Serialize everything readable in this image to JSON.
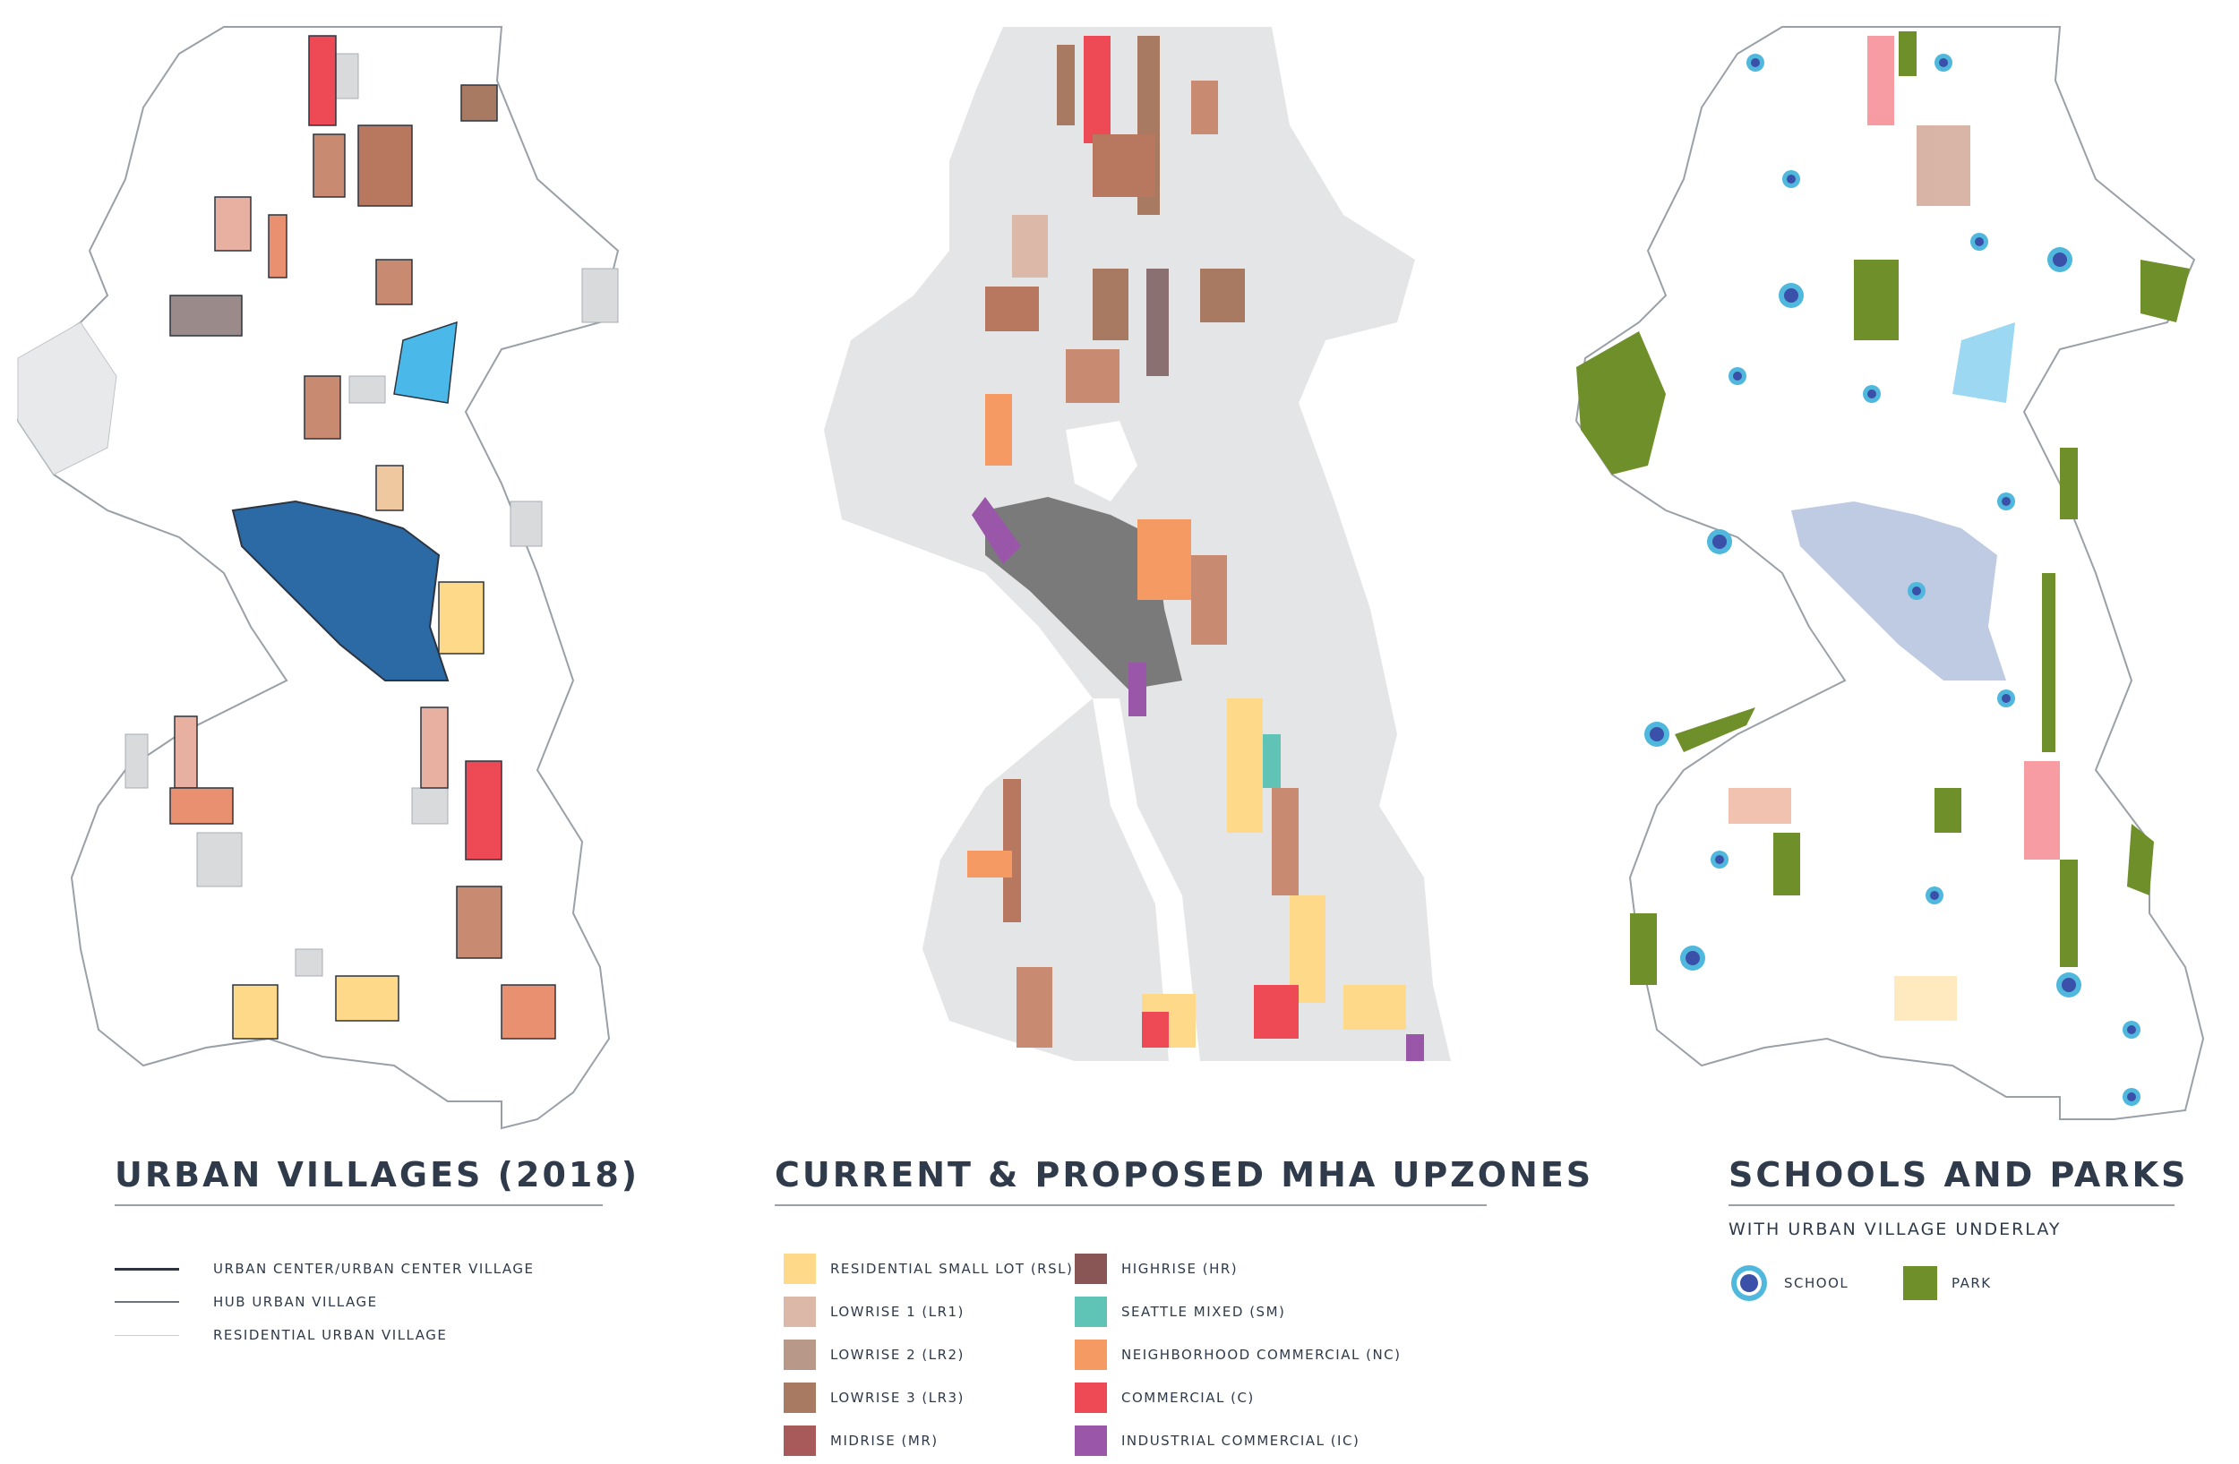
{
  "panels": {
    "urban_villages": {
      "title": "URBAN VILLAGES (2018)",
      "legend": [
        {
          "label": "URBAN CENTER/URBAN CENTER VILLAGE",
          "color": "#2c3440"
        },
        {
          "label": "HUB URBAN VILLAGE",
          "color": "#6a7280"
        },
        {
          "label": "RESIDENTIAL URBAN VILLAGE",
          "color": "#c9ced4"
        }
      ]
    },
    "upzones": {
      "title": "CURRENT & PROPOSED MHA UPZONES",
      "legend_left": [
        {
          "label": "RESIDENTIAL SMALL LOT (RSL)",
          "color": "#ffd98a"
        },
        {
          "label": "LOWRISE 1 (LR1)",
          "color": "#dcb8a8"
        },
        {
          "label": "LOWRISE 2 (LR2)",
          "color": "#b89888"
        },
        {
          "label": "LOWRISE 3 (LR3)",
          "color": "#a87a62"
        },
        {
          "label": "MIDRISE (MR)",
          "color": "#a85a5a"
        }
      ],
      "legend_right": [
        {
          "label": "HIGHRISE (HR)",
          "color": "#8a5555"
        },
        {
          "label": "SEATTLE MIXED (SM)",
          "color": "#5fc4b6"
        },
        {
          "label": "NEIGHBORHOOD COMMERCIAL (NC)",
          "color": "#f49a62"
        },
        {
          "label": "COMMERCIAL (C)",
          "color": "#ee4a55"
        },
        {
          "label": "INDUSTRIAL COMMERCIAL (IC)",
          "color": "#9a56a8"
        }
      ]
    },
    "schools_parks": {
      "title": "SCHOOLS AND PARKS",
      "subtitle": "WITH URBAN VILLAGE UNDERLAY",
      "legend": [
        {
          "label": "SCHOOL",
          "icon": "school-icon",
          "color": "#4fb8dc"
        },
        {
          "label": "PARK",
          "icon": "park-icon",
          "color": "#6f8f2a"
        }
      ]
    }
  },
  "colors": {
    "city_outline": "#9aa0a8",
    "downtown_blue": "#2c6aa6",
    "park_green": "#6f8f2a",
    "school_ring": "#4fb8dc",
    "school_dot": "#3b50a8",
    "land_grey": "#e4e5e6"
  }
}
